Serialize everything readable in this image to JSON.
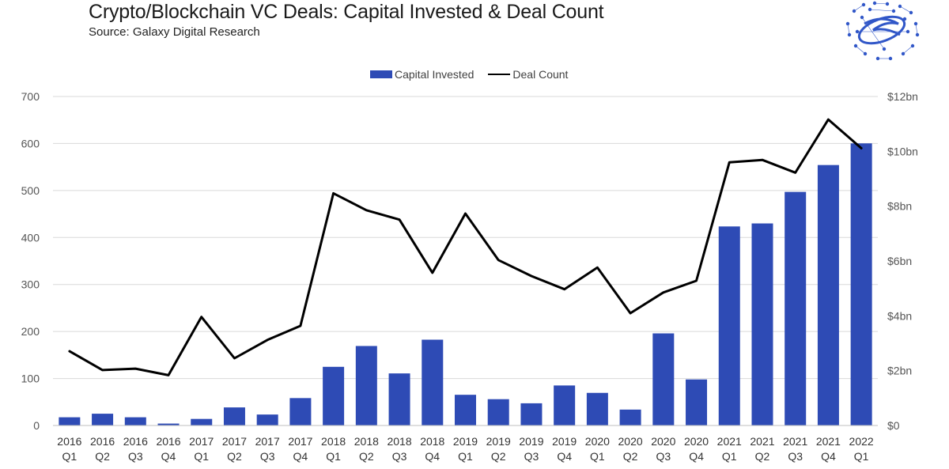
{
  "title": "Crypto/Blockchain VC Deals: Capital Invested & Deal Count",
  "subtitle": "Source: Galaxy Digital Research",
  "legend": {
    "bars": "Capital Invested",
    "line": "Deal Count"
  },
  "colors": {
    "bar": "#2e4bb5",
    "line": "#000000",
    "grid": "#d9d9d9",
    "tick": "#555555",
    "logo": "#3157c8"
  },
  "chart_data": {
    "type": "bar+line",
    "title": "Crypto/Blockchain VC Deals: Capital Invested & Deal Count",
    "subtitle": "Source: Galaxy Digital Research",
    "categories": [
      [
        "2016",
        "Q1"
      ],
      [
        "2016",
        "Q2"
      ],
      [
        "2016",
        "Q3"
      ],
      [
        "2016",
        "Q4"
      ],
      [
        "2017",
        "Q1"
      ],
      [
        "2017",
        "Q2"
      ],
      [
        "2017",
        "Q3"
      ],
      [
        "2017",
        "Q4"
      ],
      [
        "2018",
        "Q1"
      ],
      [
        "2018",
        "Q2"
      ],
      [
        "2018",
        "Q3"
      ],
      [
        "2018",
        "Q4"
      ],
      [
        "2019",
        "Q1"
      ],
      [
        "2019",
        "Q2"
      ],
      [
        "2019",
        "Q3"
      ],
      [
        "2019",
        "Q4"
      ],
      [
        "2020",
        "Q1"
      ],
      [
        "2020",
        "Q2"
      ],
      [
        "2020",
        "Q3"
      ],
      [
        "2020",
        "Q4"
      ],
      [
        "2021",
        "Q1"
      ],
      [
        "2021",
        "Q2"
      ],
      [
        "2021",
        "Q3"
      ],
      [
        "2021",
        "Q4"
      ],
      [
        "2022",
        "Q1"
      ]
    ],
    "series": [
      {
        "name": "Capital Invested",
        "kind": "bar",
        "axis": "right",
        "units": "$bn",
        "values": [
          0.3,
          0.43,
          0.3,
          0.07,
          0.24,
          0.66,
          0.4,
          1.0,
          2.14,
          2.9,
          1.9,
          3.13,
          1.12,
          0.96,
          0.81,
          1.46,
          1.19,
          0.58,
          3.36,
          1.68,
          7.26,
          7.37,
          8.52,
          9.5,
          10.29
        ]
      },
      {
        "name": "Deal Count",
        "kind": "line",
        "axis": "left",
        "values": [
          158,
          118,
          121,
          107,
          231,
          143,
          182,
          212,
          494,
          458,
          438,
          325,
          451,
          352,
          318,
          290,
          336,
          239,
          283,
          308,
          560,
          565,
          538,
          651,
          590
        ]
      }
    ],
    "y_left": {
      "label": "",
      "lim": [
        0,
        700
      ],
      "ticks": [
        0,
        100,
        200,
        300,
        400,
        500,
        600,
        700
      ],
      "tick_labels": [
        "0",
        "100",
        "200",
        "300",
        "400",
        "500",
        "600",
        "700"
      ]
    },
    "y_right": {
      "label": "",
      "lim": [
        0,
        12
      ],
      "ticks": [
        0,
        2,
        4,
        6,
        8,
        10,
        12
      ],
      "tick_labels": [
        "$0",
        "$2bn",
        "$4bn",
        "$6bn",
        "$8bn",
        "$10bn",
        "$12bn"
      ]
    },
    "grid": true,
    "legend_position": "top-center"
  }
}
